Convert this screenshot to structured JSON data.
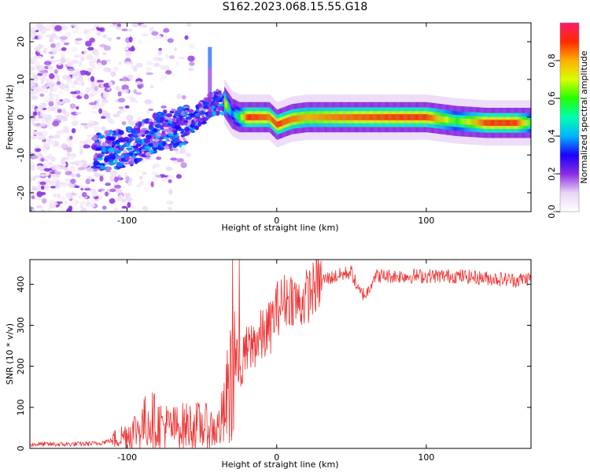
{
  "figure": {
    "title": "S162.2023.068.15.55.G18"
  },
  "colorbar": {
    "label": "Normalized spectral amplitude",
    "ticks": [
      0.0,
      0.2,
      0.4,
      0.6,
      0.8
    ],
    "tick_labels": [
      "0.0",
      "0.2",
      "0.4",
      "0.6",
      "0.8"
    ],
    "range": [
      0,
      1
    ],
    "colormap": [
      "#ffffff",
      "#e9d4f6",
      "#8a2be2",
      "#1a00ff",
      "#00b4ff",
      "#00ffb0",
      "#22ff00",
      "#d8ff00",
      "#ffb000",
      "#ff2a00",
      "#ff1a6e"
    ]
  },
  "chart_data": [
    {
      "type": "heatmap",
      "title": "",
      "xlabel": "Height of straight line (km)",
      "ylabel": "Frequency (Hz)",
      "xlim": [
        -165,
        170
      ],
      "ylim": [
        -25,
        25
      ],
      "xticks": [
        -100,
        0,
        100
      ],
      "xtick_labels": [
        "-100",
        "0",
        "100"
      ],
      "yticks": [
        -20,
        -10,
        0,
        10,
        20
      ],
      "ytick_labels": [
        "-20",
        "-10",
        "0",
        "10",
        "20"
      ],
      "ridge": {
        "x": [
          -115,
          -100,
          -90,
          -80,
          -70,
          -60,
          -50,
          -45,
          -40,
          -35,
          -30,
          -25,
          -20,
          -15,
          -10,
          -5,
          0,
          10,
          20,
          40,
          60,
          80,
          100,
          120,
          140,
          160,
          170
        ],
        "frequency": [
          -9,
          -8,
          -6,
          -4,
          -3,
          -2,
          1,
          3,
          4,
          4,
          1,
          0,
          0,
          0,
          0,
          0,
          -2,
          -0.5,
          0,
          0,
          0,
          0,
          0,
          -1,
          -1.5,
          -1.5,
          -1.5
        ],
        "amplitude": [
          0.45,
          0.5,
          0.5,
          0.45,
          0.45,
          0.45,
          0.55,
          0.7,
          0.85,
          0.8,
          0.35,
          0.6,
          0.9,
          0.9,
          0.88,
          0.85,
          0.9,
          0.85,
          0.8,
          0.85,
          0.88,
          0.9,
          0.9,
          0.6,
          0.9,
          0.9,
          0.6
        ]
      }
    },
    {
      "type": "line",
      "title": "",
      "xlabel": "Height of straight line (km)",
      "ylabel": "SNR (10 * v/v)",
      "xlim": [
        -165,
        170
      ],
      "ylim": [
        0,
        460
      ],
      "xticks": [
        -100,
        0,
        100
      ],
      "xtick_labels": [
        "-100",
        "0",
        "100"
      ],
      "yticks": [
        0,
        100,
        200,
        300,
        400
      ],
      "ytick_labels": [
        "0",
        "100",
        "200",
        "300",
        "400"
      ],
      "color": "#ee3333",
      "x": [
        -165,
        -140,
        -120,
        -110,
        -100,
        -90,
        -85,
        -80,
        -70,
        -60,
        -50,
        -40,
        -35,
        -30,
        -25,
        -20,
        -15,
        -10,
        -5,
        0,
        5,
        10,
        15,
        20,
        25,
        30,
        40,
        50,
        55,
        60,
        65,
        70,
        80,
        100,
        120,
        140,
        160,
        170
      ],
      "y": [
        10,
        10,
        12,
        20,
        35,
        55,
        75,
        60,
        50,
        55,
        55,
        45,
        80,
        180,
        210,
        230,
        260,
        270,
        290,
        340,
        360,
        370,
        350,
        370,
        390,
        410,
        420,
        430,
        380,
        375,
        420,
        420,
        420,
        420,
        420,
        415,
        410,
        415
      ]
    }
  ]
}
